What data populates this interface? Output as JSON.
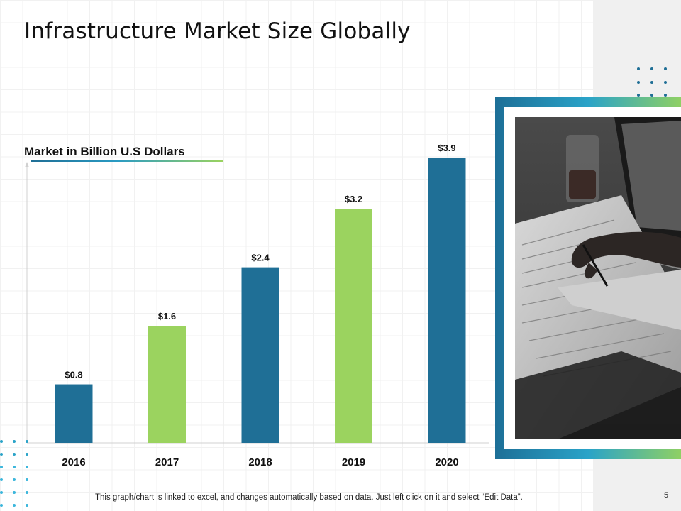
{
  "slide": {
    "title": "Infrastructure Market Size Globally",
    "footer_note": "This graph/chart is linked to excel, and changes automatically based on data. Just left click on it and select “Edit Data”.",
    "page_number": "5"
  },
  "colors": {
    "bar_blue": "#1f6f96",
    "bar_green": "#9bd35f",
    "accent_teal": "#2aa3c8",
    "dot_blue": "#2b8fbf"
  },
  "chart_data": {
    "type": "bar",
    "title": "Market in Billion U.S Dollars",
    "categories": [
      "2016",
      "2017",
      "2018",
      "2019",
      "2020"
    ],
    "values": [
      0.8,
      1.6,
      2.4,
      3.2,
      3.9
    ],
    "value_labels": [
      "$0.8",
      "$1.6",
      "$2.4",
      "$3.2",
      "$3.9"
    ],
    "bar_colors": [
      "#1f6f96",
      "#9bd35f",
      "#1f6f96",
      "#9bd35f",
      "#1f6f96"
    ],
    "ylim": [
      0,
      4.2
    ],
    "grid": false,
    "legend": "none"
  },
  "image": {
    "icon": "photo-icon",
    "subject": "hand writing on documents next to laptop"
  }
}
